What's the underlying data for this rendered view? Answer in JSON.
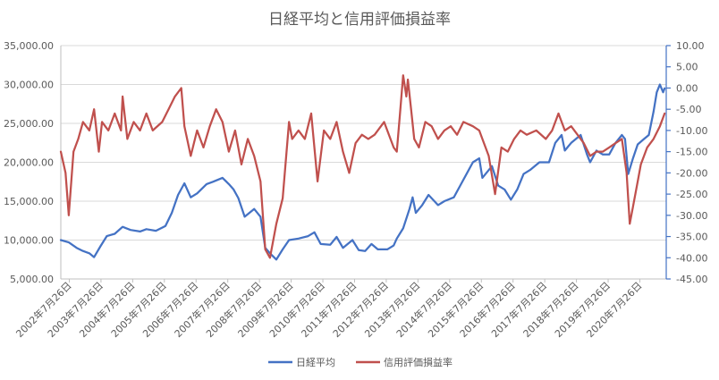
{
  "chart_data": {
    "type": "line",
    "title": "日経平均と信用評価損益率",
    "left_axis": {
      "ylim": [
        5000,
        35000
      ],
      "ticks": [
        "5,000.00",
        "10,000.00",
        "15,000.00",
        "20,000.00",
        "25,000.00",
        "30,000.00",
        "35,000.00"
      ]
    },
    "right_axis": {
      "ylim": [
        -45,
        10
      ],
      "ticks": [
        "-45.00",
        "-40.00",
        "-35.00",
        "-30.00",
        "-25.00",
        "-20.00",
        "-15.00",
        "-10.00",
        "-5.00",
        "0.00",
        "5.00",
        "10.00"
      ]
    },
    "x_ticks": [
      "2002年7月26日",
      "2003年7月26日",
      "2004年7月26日",
      "2005年7月26日",
      "2006年7月26日",
      "2007年7月26日",
      "2008年7月26日",
      "2009年7月26日",
      "2010年7月26日",
      "2011年7月26日",
      "2012年7月26日",
      "2013年7月26日",
      "2014年7月26日",
      "2015年7月26日",
      "2016年7月26日",
      "2017年7月26日",
      "2018年7月26日",
      "2019年7月26日",
      "2020年7月26日"
    ],
    "x_range": [
      2002.3,
      2021.4
    ],
    "grid": true,
    "legend": "bottom",
    "series": [
      {
        "name": "日経平均",
        "axis": "left",
        "color": "#4472C4",
        "points": [
          [
            2002.3,
            10000
          ],
          [
            2002.55,
            9700
          ],
          [
            2002.8,
            9000
          ],
          [
            2003.0,
            8600
          ],
          [
            2003.2,
            8300
          ],
          [
            2003.35,
            7800
          ],
          [
            2003.55,
            9200
          ],
          [
            2003.75,
            10500
          ],
          [
            2004.0,
            10800
          ],
          [
            2004.25,
            11700
          ],
          [
            2004.5,
            11300
          ],
          [
            2004.8,
            11100
          ],
          [
            2005.0,
            11400
          ],
          [
            2005.3,
            11200
          ],
          [
            2005.6,
            11800
          ],
          [
            2005.8,
            13500
          ],
          [
            2006.0,
            15800
          ],
          [
            2006.2,
            17300
          ],
          [
            2006.4,
            15500
          ],
          [
            2006.6,
            16000
          ],
          [
            2006.9,
            17200
          ],
          [
            2007.1,
            17500
          ],
          [
            2007.4,
            18000
          ],
          [
            2007.6,
            17200
          ],
          [
            2007.75,
            16500
          ],
          [
            2007.9,
            15400
          ],
          [
            2008.1,
            13000
          ],
          [
            2008.4,
            14000
          ],
          [
            2008.6,
            13000
          ],
          [
            2008.75,
            9000
          ],
          [
            2008.9,
            8300
          ],
          [
            2009.1,
            7500
          ],
          [
            2009.3,
            8800
          ],
          [
            2009.5,
            10000
          ],
          [
            2009.8,
            10200
          ],
          [
            2010.1,
            10500
          ],
          [
            2010.3,
            11000
          ],
          [
            2010.5,
            9500
          ],
          [
            2010.8,
            9400
          ],
          [
            2011.0,
            10400
          ],
          [
            2011.2,
            9000
          ],
          [
            2011.5,
            10000
          ],
          [
            2011.7,
            8700
          ],
          [
            2011.9,
            8600
          ],
          [
            2012.1,
            9500
          ],
          [
            2012.3,
            8800
          ],
          [
            2012.6,
            8800
          ],
          [
            2012.8,
            9300
          ],
          [
            2012.9,
            10200
          ],
          [
            2013.1,
            11500
          ],
          [
            2013.3,
            14000
          ],
          [
            2013.4,
            15500
          ],
          [
            2013.5,
            13500
          ],
          [
            2013.7,
            14500
          ],
          [
            2013.9,
            15800
          ],
          [
            2014.2,
            14500
          ],
          [
            2014.4,
            15000
          ],
          [
            2014.7,
            15500
          ],
          [
            2014.9,
            17000
          ],
          [
            2015.1,
            18500
          ],
          [
            2015.3,
            20000
          ],
          [
            2015.5,
            20500
          ],
          [
            2015.6,
            18000
          ],
          [
            2015.9,
            19500
          ],
          [
            2016.1,
            17000
          ],
          [
            2016.3,
            16500
          ],
          [
            2016.5,
            15200
          ],
          [
            2016.7,
            16500
          ],
          [
            2016.9,
            18500
          ],
          [
            2017.1,
            19000
          ],
          [
            2017.4,
            20000
          ],
          [
            2017.7,
            20000
          ],
          [
            2017.9,
            22500
          ],
          [
            2018.1,
            23500
          ],
          [
            2018.2,
            21500
          ],
          [
            2018.4,
            22500
          ],
          [
            2018.7,
            23500
          ],
          [
            2018.9,
            21000
          ],
          [
            2019.0,
            20000
          ],
          [
            2019.2,
            21500
          ],
          [
            2019.4,
            21000
          ],
          [
            2019.6,
            21000
          ],
          [
            2019.8,
            22500
          ],
          [
            2020.0,
            23500
          ],
          [
            2020.1,
            23000
          ],
          [
            2020.2,
            18500
          ],
          [
            2020.35,
            20500
          ],
          [
            2020.5,
            22300
          ],
          [
            2020.7,
            23000
          ],
          [
            2020.85,
            23500
          ],
          [
            2021.0,
            26500
          ],
          [
            2021.1,
            29000
          ],
          [
            2021.2,
            30000
          ],
          [
            2021.3,
            29000
          ],
          [
            2021.35,
            29500
          ]
        ]
      },
      {
        "name": "信用評価損益率",
        "axis": "right",
        "color": "#C0504D",
        "points": [
          [
            2002.3,
            -15
          ],
          [
            2002.45,
            -20
          ],
          [
            2002.55,
            -30
          ],
          [
            2002.7,
            -15
          ],
          [
            2002.85,
            -12
          ],
          [
            2003.0,
            -8
          ],
          [
            2003.2,
            -10
          ],
          [
            2003.35,
            -5
          ],
          [
            2003.5,
            -15
          ],
          [
            2003.6,
            -8
          ],
          [
            2003.8,
            -10
          ],
          [
            2004.0,
            -6
          ],
          [
            2004.2,
            -10
          ],
          [
            2004.25,
            -2
          ],
          [
            2004.4,
            -12
          ],
          [
            2004.6,
            -8
          ],
          [
            2004.8,
            -10
          ],
          [
            2005.0,
            -6
          ],
          [
            2005.2,
            -10
          ],
          [
            2005.5,
            -8
          ],
          [
            2005.7,
            -5
          ],
          [
            2005.9,
            -2
          ],
          [
            2006.1,
            0
          ],
          [
            2006.2,
            -9
          ],
          [
            2006.4,
            -16
          ],
          [
            2006.6,
            -10
          ],
          [
            2006.8,
            -14
          ],
          [
            2007.0,
            -9
          ],
          [
            2007.2,
            -5
          ],
          [
            2007.4,
            -8
          ],
          [
            2007.6,
            -15
          ],
          [
            2007.8,
            -10
          ],
          [
            2008.0,
            -18
          ],
          [
            2008.2,
            -12
          ],
          [
            2008.4,
            -16
          ],
          [
            2008.6,
            -22
          ],
          [
            2008.75,
            -38
          ],
          [
            2008.9,
            -40
          ],
          [
            2009.1,
            -32
          ],
          [
            2009.3,
            -26
          ],
          [
            2009.5,
            -8
          ],
          [
            2009.6,
            -12
          ],
          [
            2009.8,
            -10
          ],
          [
            2010.0,
            -12
          ],
          [
            2010.2,
            -6
          ],
          [
            2010.4,
            -22
          ],
          [
            2010.6,
            -10
          ],
          [
            2010.8,
            -12
          ],
          [
            2011.0,
            -8
          ],
          [
            2011.2,
            -15
          ],
          [
            2011.4,
            -20
          ],
          [
            2011.6,
            -13
          ],
          [
            2011.8,
            -11
          ],
          [
            2012.0,
            -12
          ],
          [
            2012.2,
            -11
          ],
          [
            2012.5,
            -8
          ],
          [
            2012.8,
            -14
          ],
          [
            2012.9,
            -15
          ],
          [
            2013.0,
            -6
          ],
          [
            2013.1,
            3
          ],
          [
            2013.2,
            -2
          ],
          [
            2013.25,
            2
          ],
          [
            2013.35,
            -5
          ],
          [
            2013.45,
            -12
          ],
          [
            2013.6,
            -14
          ],
          [
            2013.8,
            -8
          ],
          [
            2014.0,
            -9
          ],
          [
            2014.2,
            -12
          ],
          [
            2014.4,
            -10
          ],
          [
            2014.6,
            -9
          ],
          [
            2014.8,
            -11
          ],
          [
            2015.0,
            -8
          ],
          [
            2015.3,
            -9
          ],
          [
            2015.5,
            -10
          ],
          [
            2015.6,
            -12
          ],
          [
            2015.8,
            -16
          ],
          [
            2016.0,
            -25
          ],
          [
            2016.2,
            -14
          ],
          [
            2016.4,
            -15
          ],
          [
            2016.6,
            -12
          ],
          [
            2016.8,
            -10
          ],
          [
            2017.0,
            -11
          ],
          [
            2017.3,
            -10
          ],
          [
            2017.6,
            -12
          ],
          [
            2017.8,
            -10
          ],
          [
            2018.0,
            -6
          ],
          [
            2018.2,
            -10
          ],
          [
            2018.4,
            -9
          ],
          [
            2018.6,
            -11
          ],
          [
            2018.8,
            -13
          ],
          [
            2019.0,
            -16
          ],
          [
            2019.2,
            -15
          ],
          [
            2019.4,
            -15
          ],
          [
            2019.6,
            -14
          ],
          [
            2019.8,
            -13
          ],
          [
            2020.0,
            -12
          ],
          [
            2020.15,
            -20
          ],
          [
            2020.25,
            -32
          ],
          [
            2020.35,
            -28
          ],
          [
            2020.5,
            -22
          ],
          [
            2020.6,
            -18
          ],
          [
            2020.8,
            -14
          ],
          [
            2021.0,
            -12
          ],
          [
            2021.2,
            -9
          ],
          [
            2021.35,
            -6
          ]
        ]
      }
    ]
  }
}
